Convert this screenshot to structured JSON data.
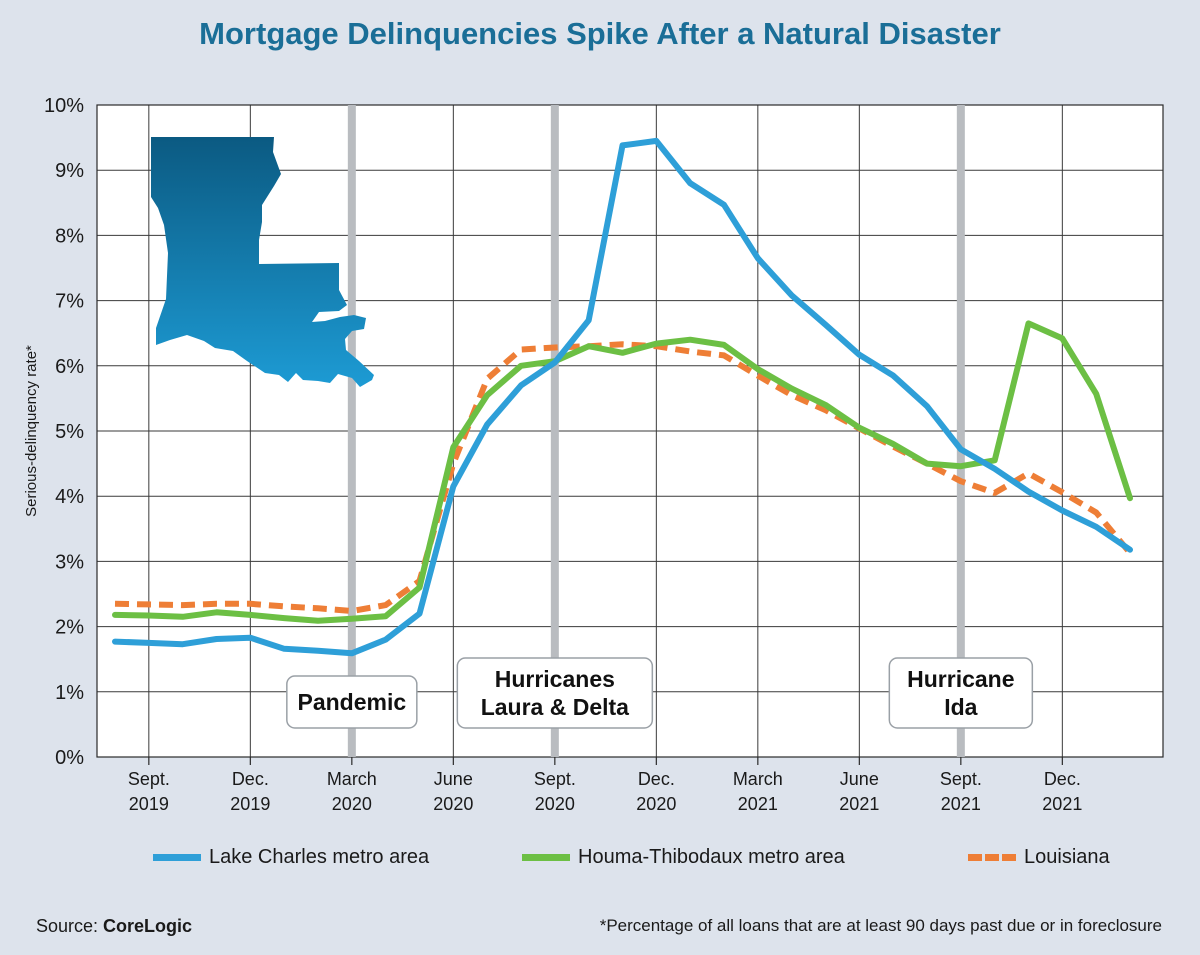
{
  "chart_data": {
    "type": "line",
    "title": "Mortgage Delinquencies Spike After a Natural Disaster",
    "ylabel": "Serious-delinquency rate*",
    "xlabel": "",
    "ylim": [
      0,
      10
    ],
    "yticks": [
      "0%",
      "1%",
      "2%",
      "3%",
      "4%",
      "5%",
      "6%",
      "7%",
      "8%",
      "9%",
      "10%"
    ],
    "months": [
      "2019-08",
      "2019-09",
      "2019-10",
      "2019-11",
      "2019-12",
      "2020-01",
      "2020-02",
      "2020-03",
      "2020-04",
      "2020-05",
      "2020-06",
      "2020-07",
      "2020-08",
      "2020-09",
      "2020-10",
      "2020-11",
      "2020-12",
      "2021-01",
      "2021-02",
      "2021-03",
      "2021-04",
      "2021-05",
      "2021-06",
      "2021-07",
      "2021-08",
      "2021-09",
      "2021-10",
      "2021-11",
      "2021-12",
      "2022-01",
      "2022-02"
    ],
    "x_tick_labels": [
      {
        "month": "2019-09",
        "line1": "Sept.",
        "line2": "2019"
      },
      {
        "month": "2019-12",
        "line1": "Dec.",
        "line2": "2019"
      },
      {
        "month": "2020-03",
        "line1": "March",
        "line2": "2020"
      },
      {
        "month": "2020-06",
        "line1": "June",
        "line2": "2020"
      },
      {
        "month": "2020-09",
        "line1": "Sept.",
        "line2": "2020"
      },
      {
        "month": "2020-12",
        "line1": "Dec.",
        "line2": "2020"
      },
      {
        "month": "2021-03",
        "line1": "March",
        "line2": "2021"
      },
      {
        "month": "2021-06",
        "line1": "June",
        "line2": "2021"
      },
      {
        "month": "2021-09",
        "line1": "Sept.",
        "line2": "2021"
      },
      {
        "month": "2021-12",
        "line1": "Dec.",
        "line2": "2021"
      }
    ],
    "series": [
      {
        "name": "Lake Charles metro area",
        "color": "#2e9fd8",
        "style": "solid",
        "values": [
          1.77,
          1.75,
          1.73,
          1.81,
          1.83,
          1.66,
          1.63,
          1.59,
          1.8,
          2.2,
          4.15,
          5.1,
          5.7,
          6.05,
          6.7,
          9.38,
          9.45,
          8.8,
          8.47,
          7.65,
          7.08,
          6.63,
          6.17,
          5.85,
          5.38,
          4.72,
          4.42,
          4.07,
          3.78,
          3.53,
          3.18
        ]
      },
      {
        "name": "Houma-Thibodaux metro area",
        "color": "#6cbf44",
        "style": "solid",
        "values": [
          2.18,
          2.17,
          2.15,
          2.22,
          2.18,
          2.13,
          2.09,
          2.12,
          2.16,
          2.6,
          4.75,
          5.55,
          6.0,
          6.07,
          6.3,
          6.2,
          6.34,
          6.4,
          6.32,
          5.95,
          5.65,
          5.4,
          5.05,
          4.8,
          4.5,
          4.46,
          4.55,
          6.65,
          6.42,
          5.57,
          3.97
        ]
      },
      {
        "name": "Louisiana",
        "color": "#ee7e36",
        "style": "dashed",
        "values": [
          2.35,
          2.34,
          2.33,
          2.35,
          2.35,
          2.31,
          2.28,
          2.24,
          2.33,
          2.7,
          4.5,
          5.8,
          6.25,
          6.28,
          6.3,
          6.33,
          6.3,
          6.22,
          6.16,
          5.85,
          5.55,
          5.32,
          5.04,
          4.76,
          4.5,
          4.23,
          4.05,
          4.35,
          4.06,
          3.75,
          3.13
        ]
      }
    ],
    "events": [
      {
        "month": "2020-03",
        "label_line1": "Pandemic",
        "label_line2": ""
      },
      {
        "month": "2020-09",
        "label_line1": "Hurricanes",
        "label_line2": "Laura & Delta"
      },
      {
        "month": "2021-09",
        "label_line1": "Hurricane",
        "label_line2": "Ida"
      }
    ],
    "grid": true,
    "legend_position": "bottom"
  },
  "footer": {
    "source_prefix": "Source: ",
    "source_name": "CoreLogic",
    "note": "*Percentage of all loans that are at least 90 days past due or in foreclosure"
  },
  "map_icon": "louisiana-state-shape",
  "colors": {
    "title": "#1a6e97",
    "background": "#dde3ec",
    "plot_background": "#ffffff",
    "event_line": "#b9bcc0"
  }
}
